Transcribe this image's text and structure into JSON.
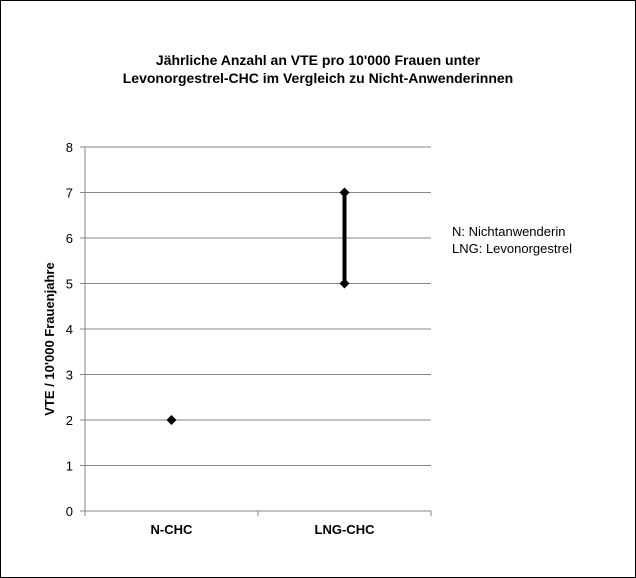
{
  "chart_data": {
    "type": "range",
    "title_lines": [
      "Jährliche Anzahl an VTE  pro 10'000  Frauen unter",
      "Levonorgestrel-CHC  im Vergleich zu Nicht-Anwenderinnen"
    ],
    "ylabel": "VTE / 10'000 Frauenjahre",
    "ylim": [
      0,
      8
    ],
    "yticks": [
      0,
      1,
      2,
      3,
      4,
      5,
      6,
      7,
      8
    ],
    "categories": [
      "N-CHC",
      "LNG-CHC"
    ],
    "ranges": [
      {
        "category": "N-CHC",
        "low": 2,
        "high": 2
      },
      {
        "category": "LNG-CHC",
        "low": 5,
        "high": 7
      }
    ],
    "grid": true,
    "legend_placement": "right",
    "legend_lines": [
      "N: Nichtanwenderin",
      "LNG: Levonorgestrel"
    ],
    "colors": {
      "marker": "#000000",
      "grid": "#868686"
    }
  }
}
